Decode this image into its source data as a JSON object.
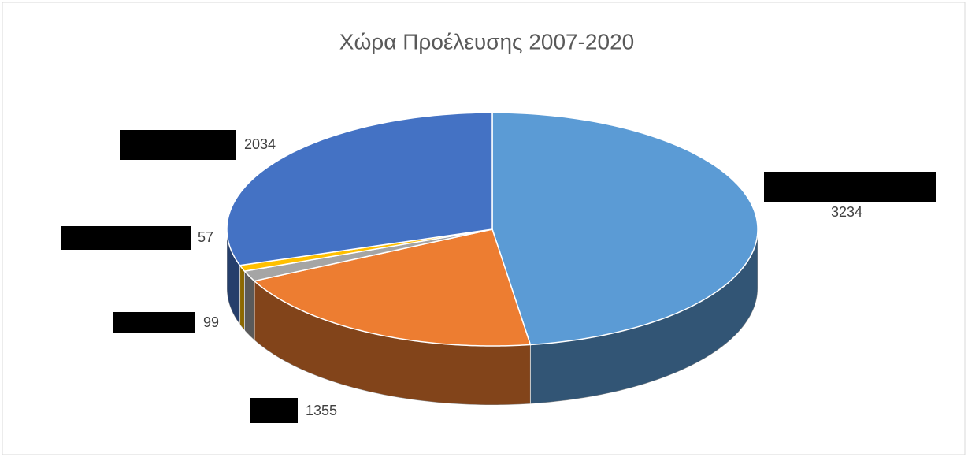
{
  "chart_data": {
    "type": "pie",
    "title": "Χώρα Προέλευσης 2007-2020",
    "categories": [
      null,
      null,
      null,
      null,
      null
    ],
    "values": [
      3234,
      1355,
      99,
      57,
      2034
    ],
    "colors": [
      "#5b9bd5",
      "#ed7d31",
      "#a5a5a5",
      "#ffc000",
      "#4472c4"
    ]
  }
}
